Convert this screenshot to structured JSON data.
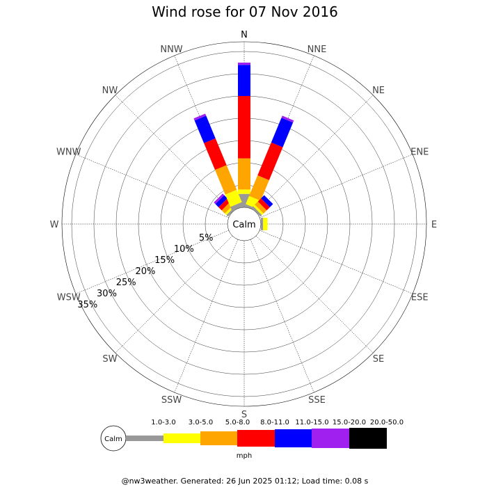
{
  "chart_data": {
    "type": "windrose",
    "title": "Wind rose for 07 Nov 2016",
    "calm_label": "Calm",
    "rings_percent": [
      5,
      10,
      15,
      20,
      25,
      30,
      35
    ],
    "ring_labels": [
      "5%",
      "10%",
      "15%",
      "20%",
      "25%",
      "30%",
      "35%"
    ],
    "directions": [
      "N",
      "NNE",
      "NE",
      "ENE",
      "E",
      "ESE",
      "SE",
      "SSE",
      "S",
      "SSW",
      "SW",
      "WSW",
      "W",
      "WNW",
      "NW",
      "NNW"
    ],
    "speed_bins": [
      "1.0-3.0",
      "3.0-5.0",
      "5.0-8.0",
      "8.0-11.0",
      "11.0-15.0",
      "15.0-20.0",
      "20.0-50.0"
    ],
    "bin_colors": [
      "#999999",
      "#ffff00",
      "#ffa500",
      "#ff0000",
      "#0000ff",
      "#a020f0",
      "#000000"
    ],
    "units": "mph",
    "cumulative_percent": {
      "N": [
        3.0,
        4.0,
        11.0,
        25.0,
        32.0,
        32.5
      ],
      "NNE": [
        0.5,
        2.5,
        7.5,
        15.5,
        21.5,
        22.0
      ],
      "NE": [
        0.5,
        1.0,
        2.0,
        3.0,
        4.0
      ],
      "E": [
        0.5,
        1.5
      ],
      "NW": [
        0.5,
        1.0,
        2.0,
        3.0,
        4.0,
        4.5
      ],
      "NNW": [
        1.0,
        4.0,
        10.0,
        16.5,
        22.0,
        22.5
      ]
    }
  },
  "legend": {
    "calm_label": "Calm",
    "bins": [
      "1.0-3.0",
      "3.0-5.0",
      "5.0-8.0",
      "8.0-11.0",
      "11.0-15.0",
      "15.0-20.0",
      "20.0-50.0"
    ],
    "units": "mph"
  },
  "footer": "@nw3weather. Generated: 26 Jun 2025 01:12; Load time: 0.08 s"
}
